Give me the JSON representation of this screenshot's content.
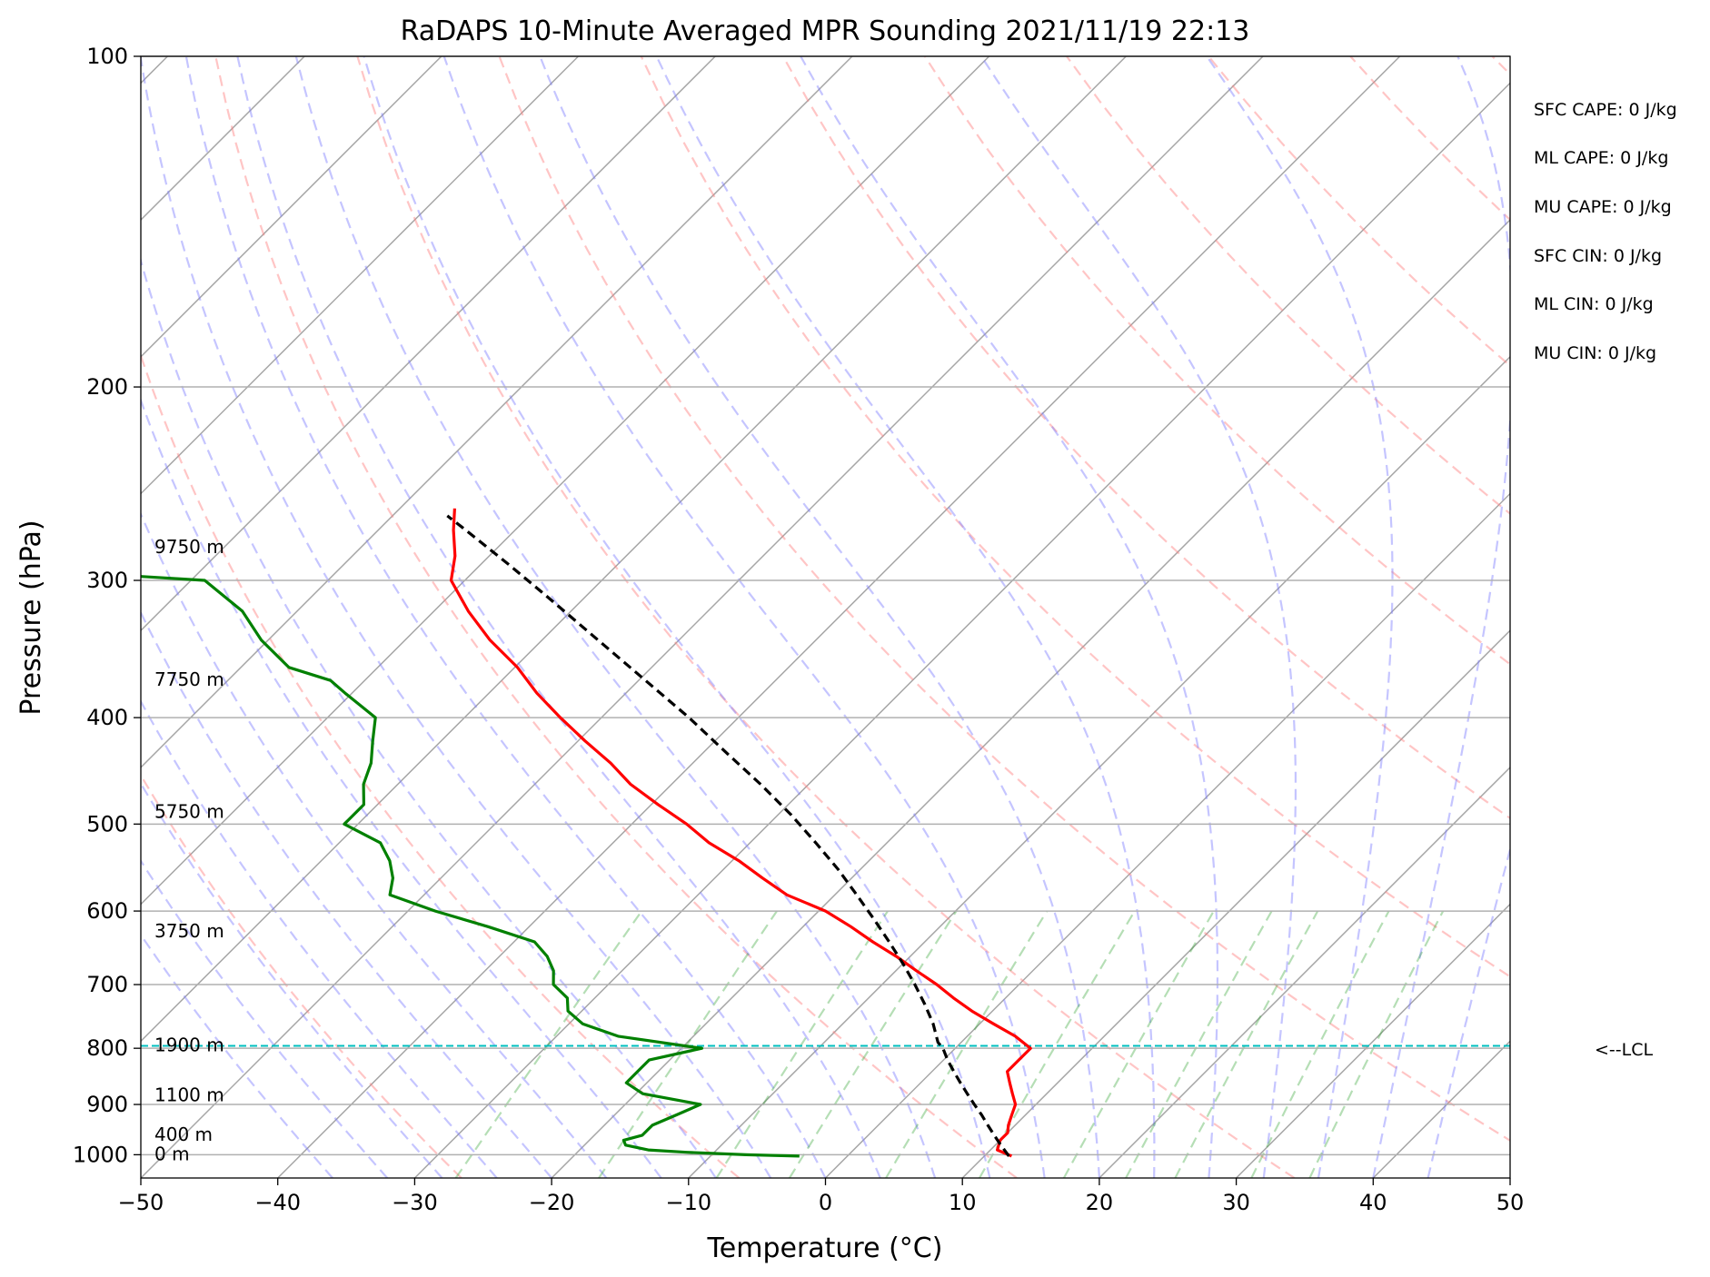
{
  "chart_data": {
    "type": "line",
    "title": "RaDAPS 10-Minute Averaged MPR Sounding 2021/11/19 22:13",
    "xlabel": "Temperature (°C)",
    "ylabel": "Pressure (hPa)",
    "xlim": [
      -50,
      50
    ],
    "ylim": [
      1050,
      100
    ],
    "y_scale": "log",
    "skew": true,
    "x_ticks": [
      "−50",
      "−40",
      "−30",
      "−20",
      "−10",
      "0",
      "10",
      "20",
      "30",
      "40",
      "50"
    ],
    "y_ticks": [
      "100",
      "200",
      "300",
      "400",
      "500",
      "600",
      "700",
      "800",
      "900",
      "1000"
    ],
    "height_labels": [
      {
        "text": "9750 m",
        "p": 280
      },
      {
        "text": "7750 m",
        "p": 370
      },
      {
        "text": "5750 m",
        "p": 488
      },
      {
        "text": "3750 m",
        "p": 627
      },
      {
        "text": "1900 m",
        "p": 796
      },
      {
        "text": "1100 m",
        "p": 884
      },
      {
        "text": "400 m",
        "p": 960
      },
      {
        "text": "0 m",
        "p": 1000
      }
    ],
    "series": [
      {
        "color": "#ff0000",
        "p": [
          1003,
          990,
          970,
          955,
          940,
          920,
          900,
          880,
          860,
          840,
          820,
          800,
          780,
          760,
          740,
          720,
          700,
          680,
          660,
          640,
          620,
          600,
          580,
          560,
          540,
          520,
          500,
          480,
          460,
          440,
          420,
          400,
          380,
          360,
          340,
          320,
          300,
          285,
          270,
          258
        ],
        "t": [
          12,
          10.5,
          10,
          10,
          9.5,
          9,
          8.5,
          7.5,
          6.5,
          5.5,
          5.5,
          5.5,
          3.5,
          1,
          -1.5,
          -3.8,
          -6,
          -8.5,
          -11,
          -13.8,
          -16.5,
          -19.5,
          -23.5,
          -26.5,
          -29.5,
          -33,
          -36,
          -39.5,
          -43,
          -46,
          -49.5,
          -53,
          -56.5,
          -59.8,
          -63.8,
          -67.5,
          -71,
          -72.5,
          -74.5,
          -76
        ]
      },
      {
        "color": "#008000",
        "p": [
          1003,
          1000,
          995,
          990,
          980,
          970,
          960,
          950,
          940,
          920,
          900,
          880,
          860,
          840,
          820,
          800,
          780,
          760,
          740,
          720,
          700,
          680,
          660,
          640,
          620,
          600,
          580,
          560,
          540,
          520,
          500,
          480,
          460,
          440,
          420,
          400,
          380,
          370,
          360,
          340,
          320,
          300,
          296
        ],
        "t": [
          -3.5,
          -7.5,
          -12,
          -15,
          -17,
          -17.5,
          -16.5,
          -16.5,
          -16.5,
          -15.5,
          -14.5,
          -19.5,
          -21.5,
          -21.5,
          -21.5,
          -18.5,
          -25.5,
          -29,
          -31,
          -32,
          -34,
          -35,
          -36.5,
          -38.5,
          -43,
          -48,
          -52.5,
          -53.5,
          -55,
          -57,
          -61,
          -61,
          -62.5,
          -63.5,
          -65,
          -66.5,
          -70.5,
          -72.5,
          -76.5,
          -80.5,
          -84,
          -89,
          -97
        ]
      },
      {
        "color": "#000000",
        "dash": true,
        "p": [
          1003,
          980,
          960,
          940,
          920,
          900,
          880,
          860,
          840,
          820,
          800,
          790,
          760,
          730,
          700,
          670,
          640,
          610,
          580,
          550,
          520,
          490,
          460,
          430,
          400,
          370,
          340,
          310,
          290,
          270,
          262
        ],
        "t": [
          11.8,
          10.4,
          9.2,
          8.0,
          6.8,
          5.5,
          4.2,
          2.9,
          1.6,
          0.3,
          -0.9,
          -1.7,
          -3.4,
          -5.4,
          -7.6,
          -10.0,
          -12.6,
          -15.4,
          -18.4,
          -21.6,
          -25.2,
          -29.1,
          -33.5,
          -38.4,
          -43.6,
          -49.5,
          -55.9,
          -62.9,
          -68.0,
          -73.6,
          -76.0
        ]
      }
    ],
    "lcl_pressure": 796,
    "lcl_color": "#00bfbf"
  },
  "annotations": {
    "lcl_label": "<--LCL",
    "stats": [
      "SFC CAPE: 0 J/kg",
      "ML CAPE: 0 J/kg",
      "MU CAPE: 0 J/kg",
      "SFC CIN: 0 J/kg",
      "ML CIN: 0 J/kg",
      "MU CIN: 0 J/kg"
    ]
  }
}
